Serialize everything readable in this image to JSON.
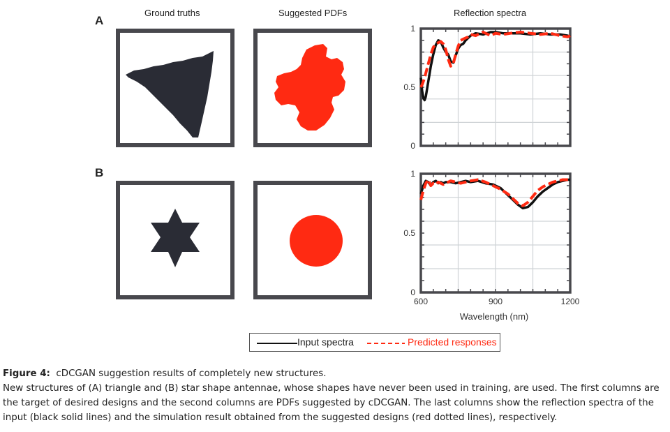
{
  "figure": {
    "columns": {
      "ground_truths": "Ground truths",
      "suggested_pdfs": "Suggested PDFs",
      "reflection_spectra": "Reflection spectra"
    },
    "panels": [
      {
        "letter": "A",
        "ground_truth_shape": "triangle",
        "suggested_pdf_shape": "blob"
      },
      {
        "letter": "B",
        "ground_truth_shape": "six-point-star",
        "suggested_pdf_shape": "circle"
      }
    ],
    "colors": {
      "frame": "#48484d",
      "shape": "#2a2c35",
      "pdf": "#ff2a12",
      "input_line": "#111111",
      "predicted_line": "#ff2a12",
      "grid": "#cfd3d6"
    }
  },
  "chart_data": [
    {
      "type": "line",
      "title": "Reflection spectra",
      "xlabel": "",
      "ylabel": "",
      "xlim": [
        600,
        1200
      ],
      "ylim": [
        0,
        1
      ],
      "y_ticks": [
        "0",
        "0.5",
        "1"
      ],
      "x_ticks": [],
      "grid": true,
      "series": [
        {
          "name": "Input spectra",
          "x": [
            600,
            605,
            610,
            615,
            620,
            630,
            640,
            650,
            660,
            670,
            680,
            690,
            700,
            710,
            720,
            730,
            740,
            750,
            760,
            770,
            780,
            790,
            800,
            820,
            850,
            880,
            900,
            930,
            960,
            1000,
            1040,
            1080,
            1120,
            1160,
            1190,
            1200
          ],
          "y": [
            0.58,
            0.47,
            0.41,
            0.39,
            0.42,
            0.55,
            0.68,
            0.78,
            0.86,
            0.9,
            0.89,
            0.84,
            0.8,
            0.78,
            0.72,
            0.71,
            0.77,
            0.83,
            0.86,
            0.87,
            0.9,
            0.92,
            0.94,
            0.96,
            0.95,
            0.97,
            0.97,
            0.96,
            0.96,
            0.96,
            0.95,
            0.96,
            0.95,
            0.95,
            0.94,
            0.93
          ]
        },
        {
          "name": "Predicted responses",
          "x": [
            600,
            605,
            610,
            615,
            620,
            630,
            640,
            650,
            660,
            670,
            680,
            690,
            700,
            710,
            720,
            730,
            740,
            750,
            760,
            770,
            780,
            790,
            800,
            820,
            850,
            880,
            900,
            930,
            960,
            1000,
            1040,
            1080,
            1120,
            1160,
            1190,
            1200
          ],
          "y": [
            0.5,
            0.52,
            0.55,
            0.58,
            0.62,
            0.7,
            0.78,
            0.84,
            0.87,
            0.88,
            0.89,
            0.87,
            0.82,
            0.74,
            0.68,
            0.7,
            0.78,
            0.85,
            0.9,
            0.91,
            0.92,
            0.93,
            0.95,
            0.94,
            0.97,
            0.94,
            0.96,
            0.95,
            0.96,
            0.97,
            0.96,
            0.95,
            0.96,
            0.94,
            0.93,
            0.94
          ]
        }
      ]
    },
    {
      "type": "line",
      "title": "",
      "xlabel": "Wavelength (nm)",
      "ylabel": "",
      "xlim": [
        600,
        1200
      ],
      "ylim": [
        0,
        1
      ],
      "y_ticks": [
        "0",
        "0.5",
        "1"
      ],
      "x_ticks": [
        "600",
        "900",
        "1200"
      ],
      "grid": true,
      "series": [
        {
          "name": "Input spectra",
          "x": [
            600,
            610,
            620,
            630,
            640,
            650,
            660,
            670,
            680,
            690,
            700,
            720,
            740,
            760,
            780,
            800,
            830,
            860,
            890,
            920,
            950,
            970,
            990,
            1010,
            1030,
            1050,
            1070,
            1090,
            1110,
            1130,
            1150,
            1170,
            1190,
            1200
          ],
          "y": [
            0.83,
            0.9,
            0.94,
            0.93,
            0.9,
            0.93,
            0.94,
            0.92,
            0.93,
            0.92,
            0.93,
            0.93,
            0.92,
            0.93,
            0.94,
            0.93,
            0.94,
            0.92,
            0.91,
            0.88,
            0.82,
            0.78,
            0.74,
            0.71,
            0.72,
            0.76,
            0.81,
            0.85,
            0.88,
            0.91,
            0.93,
            0.94,
            0.95,
            0.95
          ]
        },
        {
          "name": "Predicted responses",
          "x": [
            600,
            610,
            620,
            630,
            640,
            650,
            660,
            670,
            680,
            690,
            700,
            720,
            740,
            760,
            780,
            800,
            830,
            860,
            890,
            920,
            950,
            970,
            990,
            1010,
            1030,
            1050,
            1070,
            1090,
            1110,
            1130,
            1150,
            1170,
            1190,
            1200
          ],
          "y": [
            0.78,
            0.86,
            0.92,
            0.95,
            0.9,
            0.92,
            0.91,
            0.93,
            0.92,
            0.91,
            0.92,
            0.94,
            0.93,
            0.92,
            0.93,
            0.94,
            0.95,
            0.93,
            0.9,
            0.87,
            0.83,
            0.79,
            0.75,
            0.73,
            0.76,
            0.81,
            0.86,
            0.89,
            0.91,
            0.93,
            0.94,
            0.95,
            0.95,
            0.95
          ]
        }
      ]
    }
  ],
  "legend": {
    "input": "Input spectra",
    "predicted": "Predicted responses"
  },
  "caption": {
    "label": "Figure 4:",
    "title": "cDCGAN suggestion results of completely new structures.",
    "lines": [
      "New structures of (A) triangle and (B) star shape antennae, whose shapes have never been used in training, are used. The first columns are",
      "the target of desired designs and the second columns are PDFs suggested by cDCGAN. The last columns show the reflection spectra of the",
      "input (black solid lines) and the simulation result obtained from the suggested designs (red dotted lines), respectively."
    ]
  }
}
